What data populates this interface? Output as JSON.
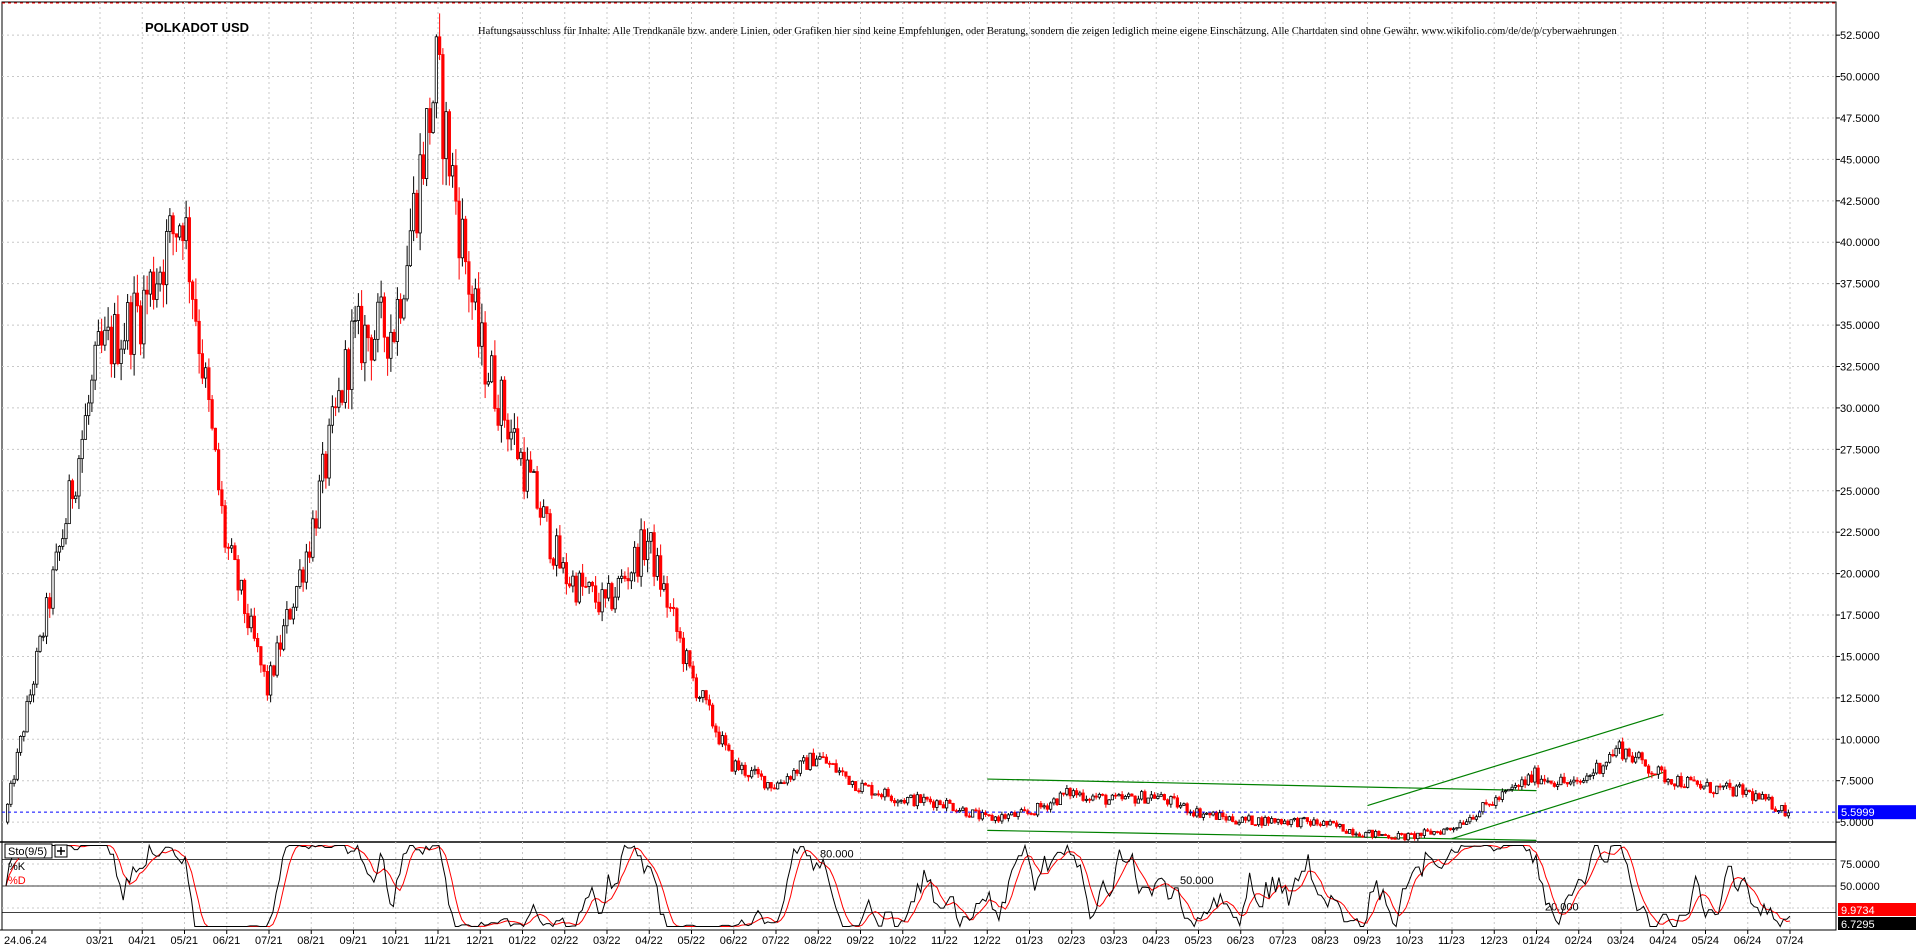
{
  "chart_data": [
    {
      "type": "candlestick",
      "title": "POLKADOT USD",
      "disclaimer": "Haftungsausschluss für Inhalte: Alle Trendkanäle bzw. andere Linien, oder Grafiken hier sind keine Empfehlungen, oder Beratung, sondern die zeigen lediglich meine eigene Einschätzung. Alle Chartdaten sind ohne Gewähr. www.wikifolio.com/de/de/p/cyberwaehrungen",
      "ylim": [
        3.8,
        54.5
      ],
      "y_ticks": [
        "52.5000",
        "50.0000",
        "47.5000",
        "45.0000",
        "42.5000",
        "40.0000",
        "37.5000",
        "35.0000",
        "32.5000",
        "30.0000",
        "27.5000",
        "25.0000",
        "22.5000",
        "20.0000",
        "17.5000",
        "15.0000",
        "12.5000",
        "10.0000",
        "7.5000",
        "5.0000"
      ],
      "x_ticks": [
        "24.06.24",
        "03/21",
        "04/21",
        "05/21",
        "06/21",
        "07/21",
        "08/21",
        "09/21",
        "10/21",
        "11/21",
        "12/21",
        "01/22",
        "02/22",
        "03/22",
        "04/22",
        "05/22",
        "06/22",
        "07/22",
        "08/22",
        "09/22",
        "10/22",
        "11/22",
        "12/22",
        "01/23",
        "02/23",
        "03/23",
        "04/23",
        "05/23",
        "06/23",
        "07/23",
        "08/23",
        "09/23",
        "10/23",
        "11/23",
        "12/23",
        "01/24",
        "02/24",
        "03/24",
        "04/24",
        "05/24",
        "06/24",
        "07/24"
      ],
      "grid": true,
      "up_color": "#000000",
      "down_color": "#ff0000",
      "current_price": {
        "label": "5.5999",
        "value": 5.6,
        "color": "#0000ff"
      },
      "monthly_path": [
        {
          "x": "02/21",
          "y": 5.0
        },
        {
          "x": "03/21",
          "y": 33.0
        },
        {
          "x": "04/21",
          "y": 36.0
        },
        {
          "x": "05/21",
          "y": 42.0
        },
        {
          "x": "06/21",
          "y": 22.0
        },
        {
          "x": "07/21",
          "y": 13.0
        },
        {
          "x": "08/21",
          "y": 22.0
        },
        {
          "x": "09/21",
          "y": 34.0
        },
        {
          "x": "10/21",
          "y": 35.0
        },
        {
          "x": "11/21",
          "y": 50.0
        },
        {
          "x": "12/21",
          "y": 34.0
        },
        {
          "x": "01/22",
          "y": 27.0
        },
        {
          "x": "02/22",
          "y": 20.0
        },
        {
          "x": "03/22",
          "y": 18.0
        },
        {
          "x": "04/22",
          "y": 22.0
        },
        {
          "x": "05/22",
          "y": 14.0
        },
        {
          "x": "06/22",
          "y": 8.5
        },
        {
          "x": "07/22",
          "y": 7.2
        },
        {
          "x": "08/22",
          "y": 9.0
        },
        {
          "x": "09/22",
          "y": 7.2
        },
        {
          "x": "10/22",
          "y": 6.4
        },
        {
          "x": "11/22",
          "y": 6.2
        },
        {
          "x": "12/22",
          "y": 5.2
        },
        {
          "x": "01/23",
          "y": 5.5
        },
        {
          "x": "02/23",
          "y": 6.8
        },
        {
          "x": "03/23",
          "y": 6.3
        },
        {
          "x": "04/23",
          "y": 6.6
        },
        {
          "x": "05/23",
          "y": 5.6
        },
        {
          "x": "06/23",
          "y": 5.1
        },
        {
          "x": "07/23",
          "y": 5.1
        },
        {
          "x": "08/23",
          "y": 4.9
        },
        {
          "x": "09/23",
          "y": 4.3
        },
        {
          "x": "10/23",
          "y": 4.1
        },
        {
          "x": "11/23",
          "y": 4.6
        },
        {
          "x": "12/23",
          "y": 6.2
        },
        {
          "x": "01/24",
          "y": 7.8
        },
        {
          "x": "02/24",
          "y": 7.2
        },
        {
          "x": "03/24",
          "y": 9.5
        },
        {
          "x": "04/24",
          "y": 7.8
        },
        {
          "x": "05/24",
          "y": 7.1
        },
        {
          "x": "06/24",
          "y": 6.8
        },
        {
          "x": "07/24",
          "y": 5.6
        }
      ],
      "trendlines": [
        {
          "color": "#008000",
          "from": {
            "x": "12/22",
            "y": 7.6
          },
          "to": {
            "x": "01/24",
            "y": 6.9
          }
        },
        {
          "color": "#008000",
          "from": {
            "x": "12/22",
            "y": 4.5
          },
          "to": {
            "x": "01/24",
            "y": 3.9
          }
        },
        {
          "color": "#008000",
          "from": {
            "x": "09/23",
            "y": 6.0
          },
          "to": {
            "x": "04/24",
            "y": 11.5
          }
        },
        {
          "color": "#008000",
          "from": {
            "x": "11/23",
            "y": 4.0
          },
          "to": {
            "x": "04/24",
            "y": 8.0
          }
        }
      ]
    },
    {
      "type": "line",
      "title": "Sto(9/5)",
      "ylim": [
        0,
        100
      ],
      "y_ticks": [
        "75.0000",
        "50.0000",
        "25.0000"
      ],
      "levels": [
        {
          "value": 80,
          "label": "80.000"
        },
        {
          "value": 50,
          "label": "50.000"
        },
        {
          "value": 20,
          "label": "20.000"
        }
      ],
      "series": [
        {
          "name": "%K",
          "color": "#000000"
        },
        {
          "name": "%D",
          "color": "#ff0000"
        }
      ],
      "last_values": [
        {
          "label": "9.9734",
          "color": "#ff0000"
        },
        {
          "label": "6.7295",
          "color": "#000000"
        }
      ]
    }
  ]
}
